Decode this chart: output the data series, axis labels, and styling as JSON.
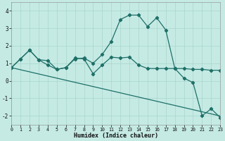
{
  "xlabel": "Humidex (Indice chaleur)",
  "xlim": [
    0,
    23
  ],
  "ylim": [
    -2.5,
    4.5
  ],
  "yticks": [
    -2,
    -1,
    0,
    1,
    2,
    3,
    4
  ],
  "xticks": [
    0,
    1,
    2,
    3,
    4,
    5,
    6,
    7,
    8,
    9,
    10,
    11,
    12,
    13,
    14,
    15,
    16,
    17,
    18,
    19,
    20,
    21,
    22,
    23
  ],
  "background_color": "#c5eae4",
  "line_color": "#1e7068",
  "grid_color": "#a8d5cc",
  "figsize": [
    3.2,
    2.0
  ],
  "dpi": 100,
  "series": [
    [
      0.75,
      1.25,
      1.75,
      1.2,
      1.15,
      0.65,
      0.75,
      1.25,
      1.3,
      1.0,
      1.5,
      2.25,
      3.5,
      3.75,
      3.75,
      3.1,
      3.6,
      2.9,
      0.7,
      0.15,
      -0.1,
      -2.0,
      -1.6,
      -2.1
    ],
    [
      0.75,
      1.25,
      1.75,
      1.2,
      0.9,
      0.65,
      0.75,
      1.3,
      1.25,
      0.4,
      0.9,
      1.35,
      1.3,
      1.35,
      0.9,
      0.7,
      0.7,
      0.7,
      0.7,
      0.7,
      0.65,
      0.65,
      0.6,
      0.6
    ],
    [
      0.75,
      0.63,
      0.51,
      0.39,
      0.27,
      0.15,
      0.03,
      -0.09,
      -0.21,
      -0.33,
      -0.45,
      -0.57,
      -0.69,
      -0.81,
      -0.93,
      -1.05,
      -1.17,
      -1.29,
      -1.41,
      -1.53,
      -1.65,
      -1.77,
      -1.89,
      -2.01
    ]
  ]
}
